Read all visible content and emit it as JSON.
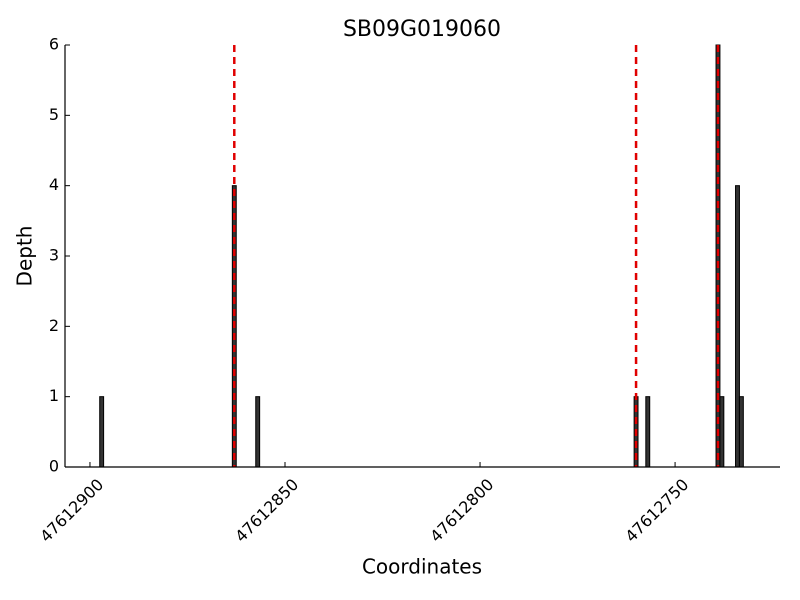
{
  "chart_data": {
    "type": "bar",
    "title": "SB09G019060",
    "xlabel": "Coordinates",
    "ylabel": "Depth",
    "x": [
      47612897,
      47612863,
      47612857,
      47612760,
      47612757,
      47612739,
      47612738,
      47612734,
      47612733
    ],
    "values": [
      1,
      4,
      1,
      1,
      1,
      6,
      1,
      4,
      1
    ],
    "color": "#333333",
    "xlim": [
      47612906.4,
      47612723.1
    ],
    "xticks": [
      47612900,
      47612850,
      47612800,
      47612750
    ],
    "ylim": [
      0,
      6
    ],
    "yticks": [
      0,
      1,
      2,
      3,
      4,
      5,
      6
    ],
    "vlines": [
      47612863,
      47612760,
      47612739
    ],
    "vline_color": "#e00000"
  }
}
